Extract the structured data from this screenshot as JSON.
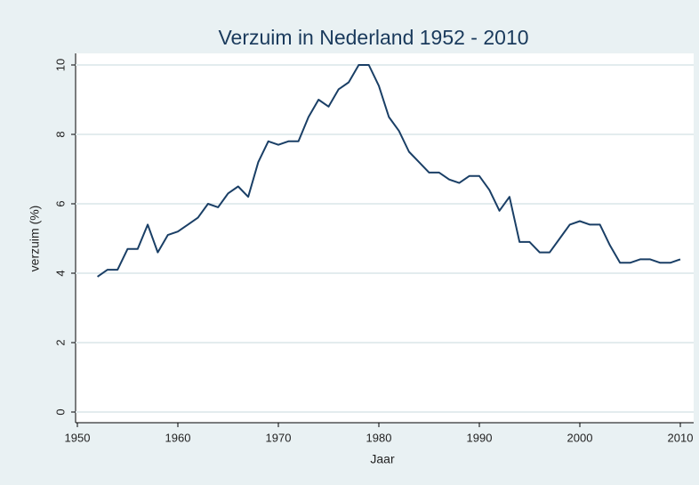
{
  "chart_data": {
    "type": "line",
    "title": "Verzuim in Nederland 1952 - 2010",
    "x_label": "Jaar",
    "y_label": "verzuim (%)",
    "x": [
      1952,
      1953,
      1954,
      1955,
      1956,
      1957,
      1958,
      1959,
      1960,
      1961,
      1962,
      1963,
      1964,
      1965,
      1966,
      1967,
      1968,
      1969,
      1970,
      1971,
      1972,
      1973,
      1974,
      1975,
      1976,
      1977,
      1978,
      1979,
      1980,
      1981,
      1982,
      1983,
      1984,
      1985,
      1986,
      1987,
      1988,
      1989,
      1990,
      1991,
      1992,
      1993,
      1994,
      1995,
      1996,
      1997,
      1998,
      1999,
      2000,
      2001,
      2002,
      2003,
      2004,
      2005,
      2006,
      2007,
      2008,
      2009,
      2010
    ],
    "series": [
      {
        "name": "verzuim",
        "color": "#1a3f66",
        "values": [
          3.9,
          4.1,
          4.1,
          4.7,
          4.7,
          5.4,
          4.6,
          5.1,
          5.2,
          5.4,
          5.6,
          6.0,
          5.9,
          6.3,
          6.5,
          6.2,
          7.2,
          7.8,
          7.7,
          7.8,
          7.8,
          8.5,
          9.0,
          8.8,
          9.3,
          9.5,
          10.0,
          10.0,
          9.4,
          8.5,
          8.1,
          7.5,
          7.2,
          6.9,
          6.9,
          6.7,
          6.6,
          6.8,
          6.8,
          6.4,
          5.8,
          6.2,
          4.9,
          4.9,
          4.6,
          4.6,
          5.0,
          5.4,
          5.5,
          5.4,
          5.4,
          4.8,
          4.3,
          4.3,
          4.4,
          4.4,
          4.3,
          4.3,
          4.4
        ]
      }
    ],
    "xlim": [
      1950,
      2010
    ],
    "xticks": [
      1950,
      1960,
      1970,
      1980,
      1990,
      2000,
      2010
    ],
    "ylim": [
      0,
      10
    ],
    "yticks": [
      0,
      2,
      4,
      6,
      8,
      10
    ],
    "grid": true
  }
}
